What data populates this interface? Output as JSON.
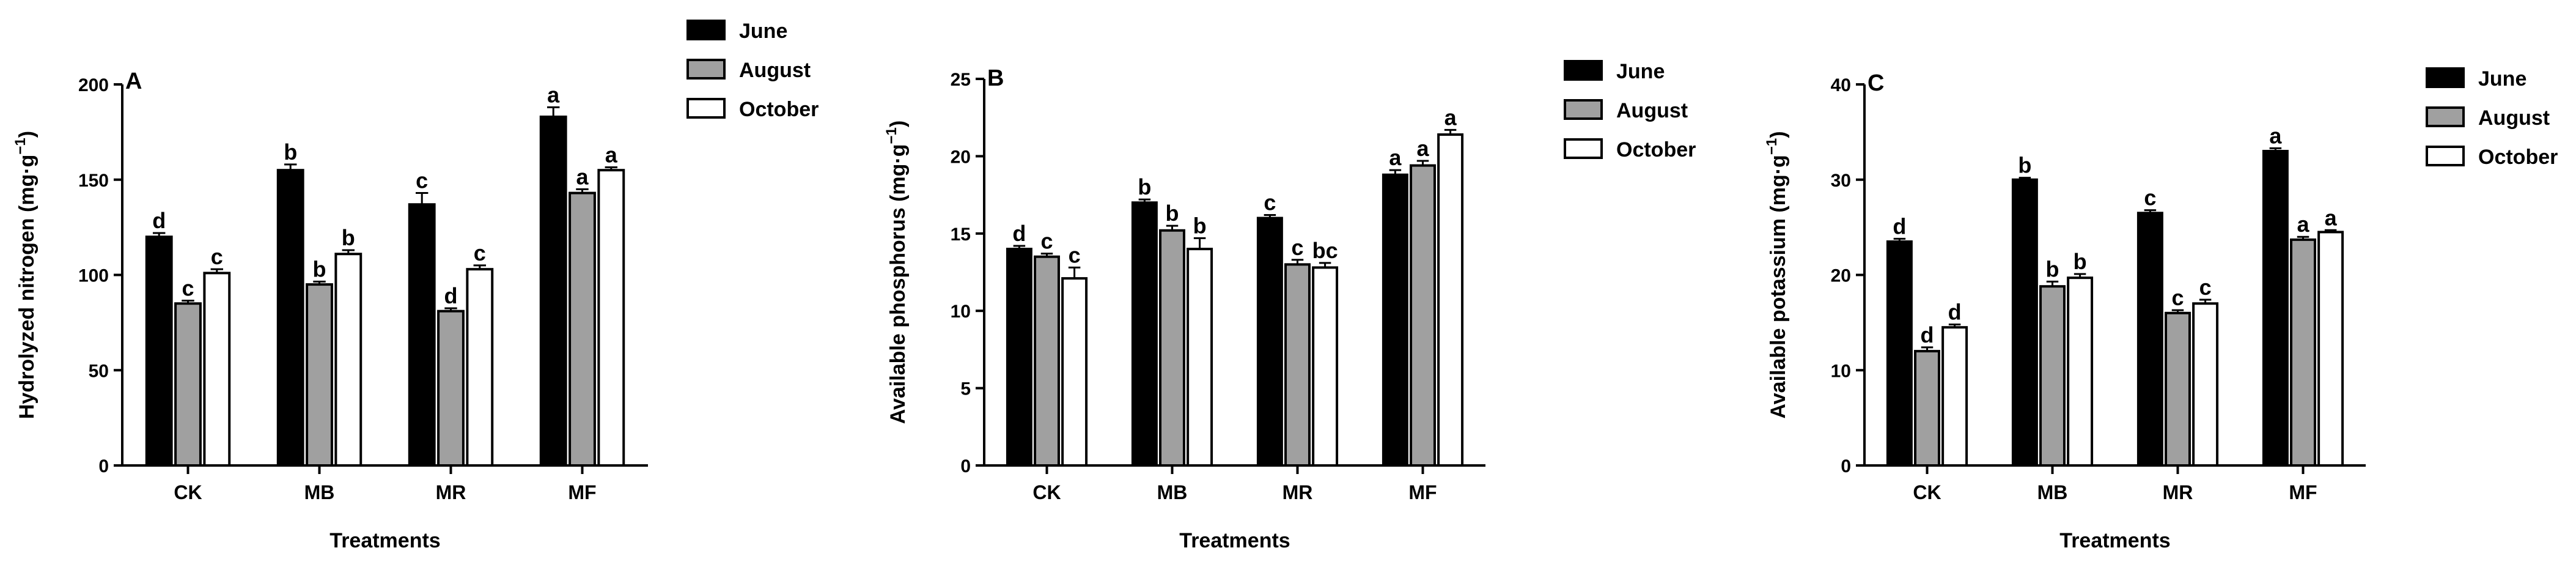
{
  "chart_data": [
    {
      "type": "bar",
      "panel": "A",
      "categories": [
        "CK",
        "MB",
        "MR",
        "MF"
      ],
      "series": [
        {
          "name": "June",
          "color": "#000000",
          "values": [
            120,
            155,
            137,
            183
          ],
          "errors": [
            2,
            3,
            6,
            5
          ],
          "letters": [
            "d",
            "b",
            "c",
            "a"
          ]
        },
        {
          "name": "August",
          "color": "#a0a0a0",
          "values": [
            85,
            95,
            81,
            143
          ],
          "errors": [
            1.5,
            1.5,
            1.5,
            2
          ],
          "letters": [
            "c",
            "b",
            "d",
            "a"
          ]
        },
        {
          "name": "October",
          "color": "#ffffff",
          "values": [
            101,
            111,
            103,
            155
          ],
          "errors": [
            2,
            2,
            2,
            1.5
          ],
          "letters": [
            "c",
            "b",
            "c",
            "a"
          ]
        }
      ],
      "xlabel": "Treatments",
      "ylabel_main": "Hydrolyzed nitrogen (mg·g",
      "ylabel_sup": "−1",
      "ylabel_end": ")",
      "ylim": [
        0,
        200
      ],
      "yticks": [
        0,
        50,
        100,
        150,
        200
      ],
      "legend_position": "top-right"
    },
    {
      "type": "bar",
      "panel": "B",
      "categories": [
        "CK",
        "MB",
        "MR",
        "MF"
      ],
      "series": [
        {
          "name": "June",
          "color": "#000000",
          "values": [
            14,
            17,
            16,
            18.8
          ],
          "errors": [
            0.2,
            0.2,
            0.2,
            0.3
          ],
          "letters": [
            "d",
            "b",
            "c",
            "a"
          ]
        },
        {
          "name": "August",
          "color": "#a0a0a0",
          "values": [
            13.5,
            15.2,
            13,
            19.4
          ],
          "errors": [
            0.2,
            0.3,
            0.3,
            0.3
          ],
          "letters": [
            "c",
            "b",
            "c",
            "a"
          ]
        },
        {
          "name": "October",
          "color": "#ffffff",
          "values": [
            12.1,
            14,
            12.8,
            21.4
          ],
          "errors": [
            0.7,
            0.7,
            0.3,
            0.3
          ],
          "letters": [
            "c",
            "b",
            "bc",
            "a"
          ]
        }
      ],
      "xlabel": "Treatments",
      "ylabel_main": "Available phosphorus (mg·g",
      "ylabel_sup": "−1",
      "ylabel_end": ")",
      "ylim": [
        0,
        25
      ],
      "yticks": [
        0,
        5,
        10,
        15,
        20,
        25
      ],
      "legend_position": "top-right"
    },
    {
      "type": "bar",
      "panel": "C",
      "categories": [
        "CK",
        "MB",
        "MR",
        "MF"
      ],
      "series": [
        {
          "name": "June",
          "color": "#000000",
          "values": [
            23.5,
            30,
            26.5,
            33
          ],
          "errors": [
            0.3,
            0.2,
            0.3,
            0.3
          ],
          "letters": [
            "d",
            "b",
            "c",
            "a"
          ]
        },
        {
          "name": "August",
          "color": "#a0a0a0",
          "values": [
            12,
            18.8,
            16,
            23.7
          ],
          "errors": [
            0.4,
            0.5,
            0.3,
            0.3
          ],
          "letters": [
            "d",
            "b",
            "c",
            "a"
          ]
        },
        {
          "name": "October",
          "color": "#ffffff",
          "values": [
            14.5,
            19.7,
            17,
            24.5
          ],
          "errors": [
            0.3,
            0.4,
            0.4,
            0.2
          ],
          "letters": [
            "d",
            "b",
            "c",
            "a"
          ]
        }
      ],
      "xlabel": "Treatments",
      "ylabel_main": "Available potassium (mg·g",
      "ylabel_sup": "−1",
      "ylabel_end": ")",
      "ylim": [
        0,
        40
      ],
      "yticks": [
        0,
        10,
        20,
        30,
        40
      ],
      "legend_position": "top-right"
    }
  ]
}
